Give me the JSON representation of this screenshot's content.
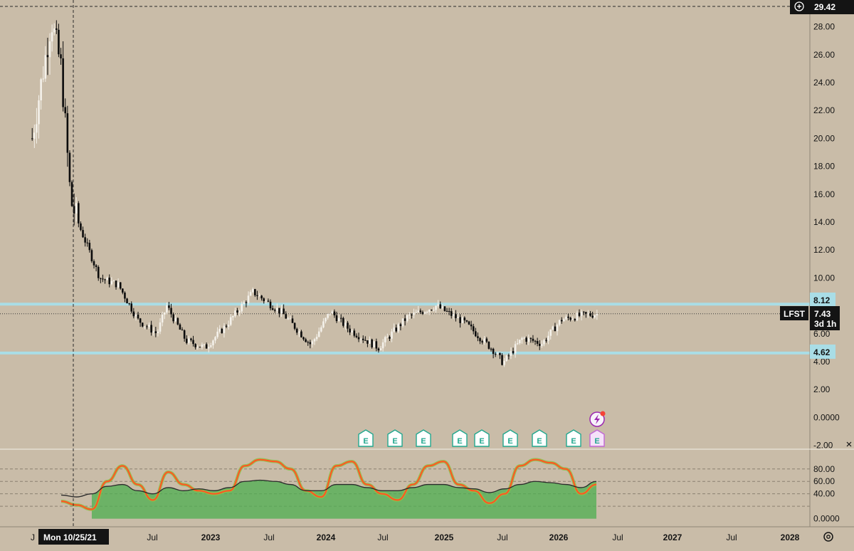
{
  "symbol": "LFST",
  "interval": "3d 1h",
  "current_price": "7.43",
  "crosshair": {
    "price": "29.42",
    "date": "Mon 10/25/21"
  },
  "levels": [
    {
      "label": "8.12",
      "value": 8.12,
      "color": "#a9dde6"
    },
    {
      "label": "4.62",
      "value": 4.62,
      "color": "#a9dde6"
    }
  ],
  "time_axis": [
    "J",
    "Jul",
    "2023",
    "Jul",
    "2024",
    "Jul",
    "2025",
    "Jul",
    "2026",
    "Jul",
    "2027",
    "Jul",
    "2028"
  ],
  "price_axis": [
    "28.00",
    "26.00",
    "24.00",
    "22.00",
    "20.00",
    "18.00",
    "16.00",
    "14.00",
    "12.00",
    "10.00",
    "8.00",
    "6.00",
    "4.00",
    "2.00",
    "0.0000",
    "-2.00"
  ],
  "indicator_axis": [
    "80.00",
    "60.00",
    "40.00",
    "0.0000"
  ],
  "earnings_badges": [
    "E",
    "E",
    "E",
    "E",
    "E",
    "E",
    "E",
    "E",
    "E"
  ],
  "colors": {
    "background": "#c9bca8",
    "up_candle": "#f4f1ea",
    "down_candle": "#0c0c0c",
    "level_line": "#a9dde6",
    "indicator_fill": "#4caf50",
    "stoch_line": "#ff5722",
    "stoch_line_low": "#8bc34a",
    "signal_line": "#2b2b2b",
    "earnings_badge": "#22a88f",
    "upcoming_badge": "#c266d6"
  },
  "icons": [
    "plus-circle-icon",
    "lightning-icon",
    "settings-icon",
    "close-icon"
  ],
  "chart_data": [
    {
      "type": "candlestick",
      "title": "LFST",
      "x_axis": "time (3-day bars)",
      "x_range": [
        "2021-06",
        "2028-02"
      ],
      "ylim": [
        -2,
        30
      ],
      "approx_path": [
        {
          "date": "2021-06",
          "price": 20
        },
        {
          "date": "2021-08",
          "price": 28.5
        },
        {
          "date": "2021-09",
          "price": 25
        },
        {
          "date": "2021-10",
          "price": 15.5
        },
        {
          "date": "2021-11",
          "price": 13.5
        },
        {
          "date": "2022-01",
          "price": 10
        },
        {
          "date": "2022-03",
          "price": 9.5
        },
        {
          "date": "2022-05",
          "price": 7
        },
        {
          "date": "2022-07",
          "price": 6
        },
        {
          "date": "2022-08",
          "price": 8
        },
        {
          "date": "2022-10",
          "price": 5.5
        },
        {
          "date": "2022-12",
          "price": 5.0
        },
        {
          "date": "2023-02",
          "price": 6.5
        },
        {
          "date": "2023-05",
          "price": 9.0
        },
        {
          "date": "2023-08",
          "price": 7.5
        },
        {
          "date": "2023-11",
          "price": 5.2
        },
        {
          "date": "2024-01",
          "price": 7.6
        },
        {
          "date": "2024-03",
          "price": 6.3
        },
        {
          "date": "2024-06",
          "price": 5.0
        },
        {
          "date": "2024-09",
          "price": 7.2
        },
        {
          "date": "2024-12",
          "price": 8.0
        },
        {
          "date": "2025-03",
          "price": 6.8
        },
        {
          "date": "2025-06",
          "price": 4.8
        },
        {
          "date": "2025-07",
          "price": 3.9
        },
        {
          "date": "2025-09",
          "price": 5.7
        },
        {
          "date": "2025-11",
          "price": 5.3
        },
        {
          "date": "2026-01",
          "price": 7.0
        },
        {
          "date": "2026-03",
          "price": 7.3
        },
        {
          "date": "2026-05",
          "price": 7.43
        }
      ],
      "horizontal_levels": [
        8.12,
        4.62
      ]
    },
    {
      "type": "area",
      "title": "",
      "ylim": [
        0,
        100
      ],
      "ticks": [
        80,
        60,
        40,
        0
      ],
      "series": [
        {
          "values": [
            28,
            22,
            15,
            60,
            85,
            55,
            30,
            75,
            55,
            45,
            40,
            45,
            85,
            95,
            92,
            80,
            45,
            35,
            85,
            92,
            55,
            40,
            30,
            55,
            85,
            92,
            55,
            45,
            25,
            40,
            85,
            95,
            90,
            80,
            40,
            55
          ]
        },
        {
          "values": [
            38,
            35,
            40,
            52,
            55,
            45,
            40,
            50,
            45,
            48,
            45,
            50,
            60,
            62,
            60,
            55,
            45,
            45,
            55,
            55,
            50,
            45,
            45,
            50,
            55,
            55,
            50,
            48,
            42,
            48,
            55,
            60,
            58,
            55,
            50,
            60
          ]
        }
      ]
    }
  ]
}
